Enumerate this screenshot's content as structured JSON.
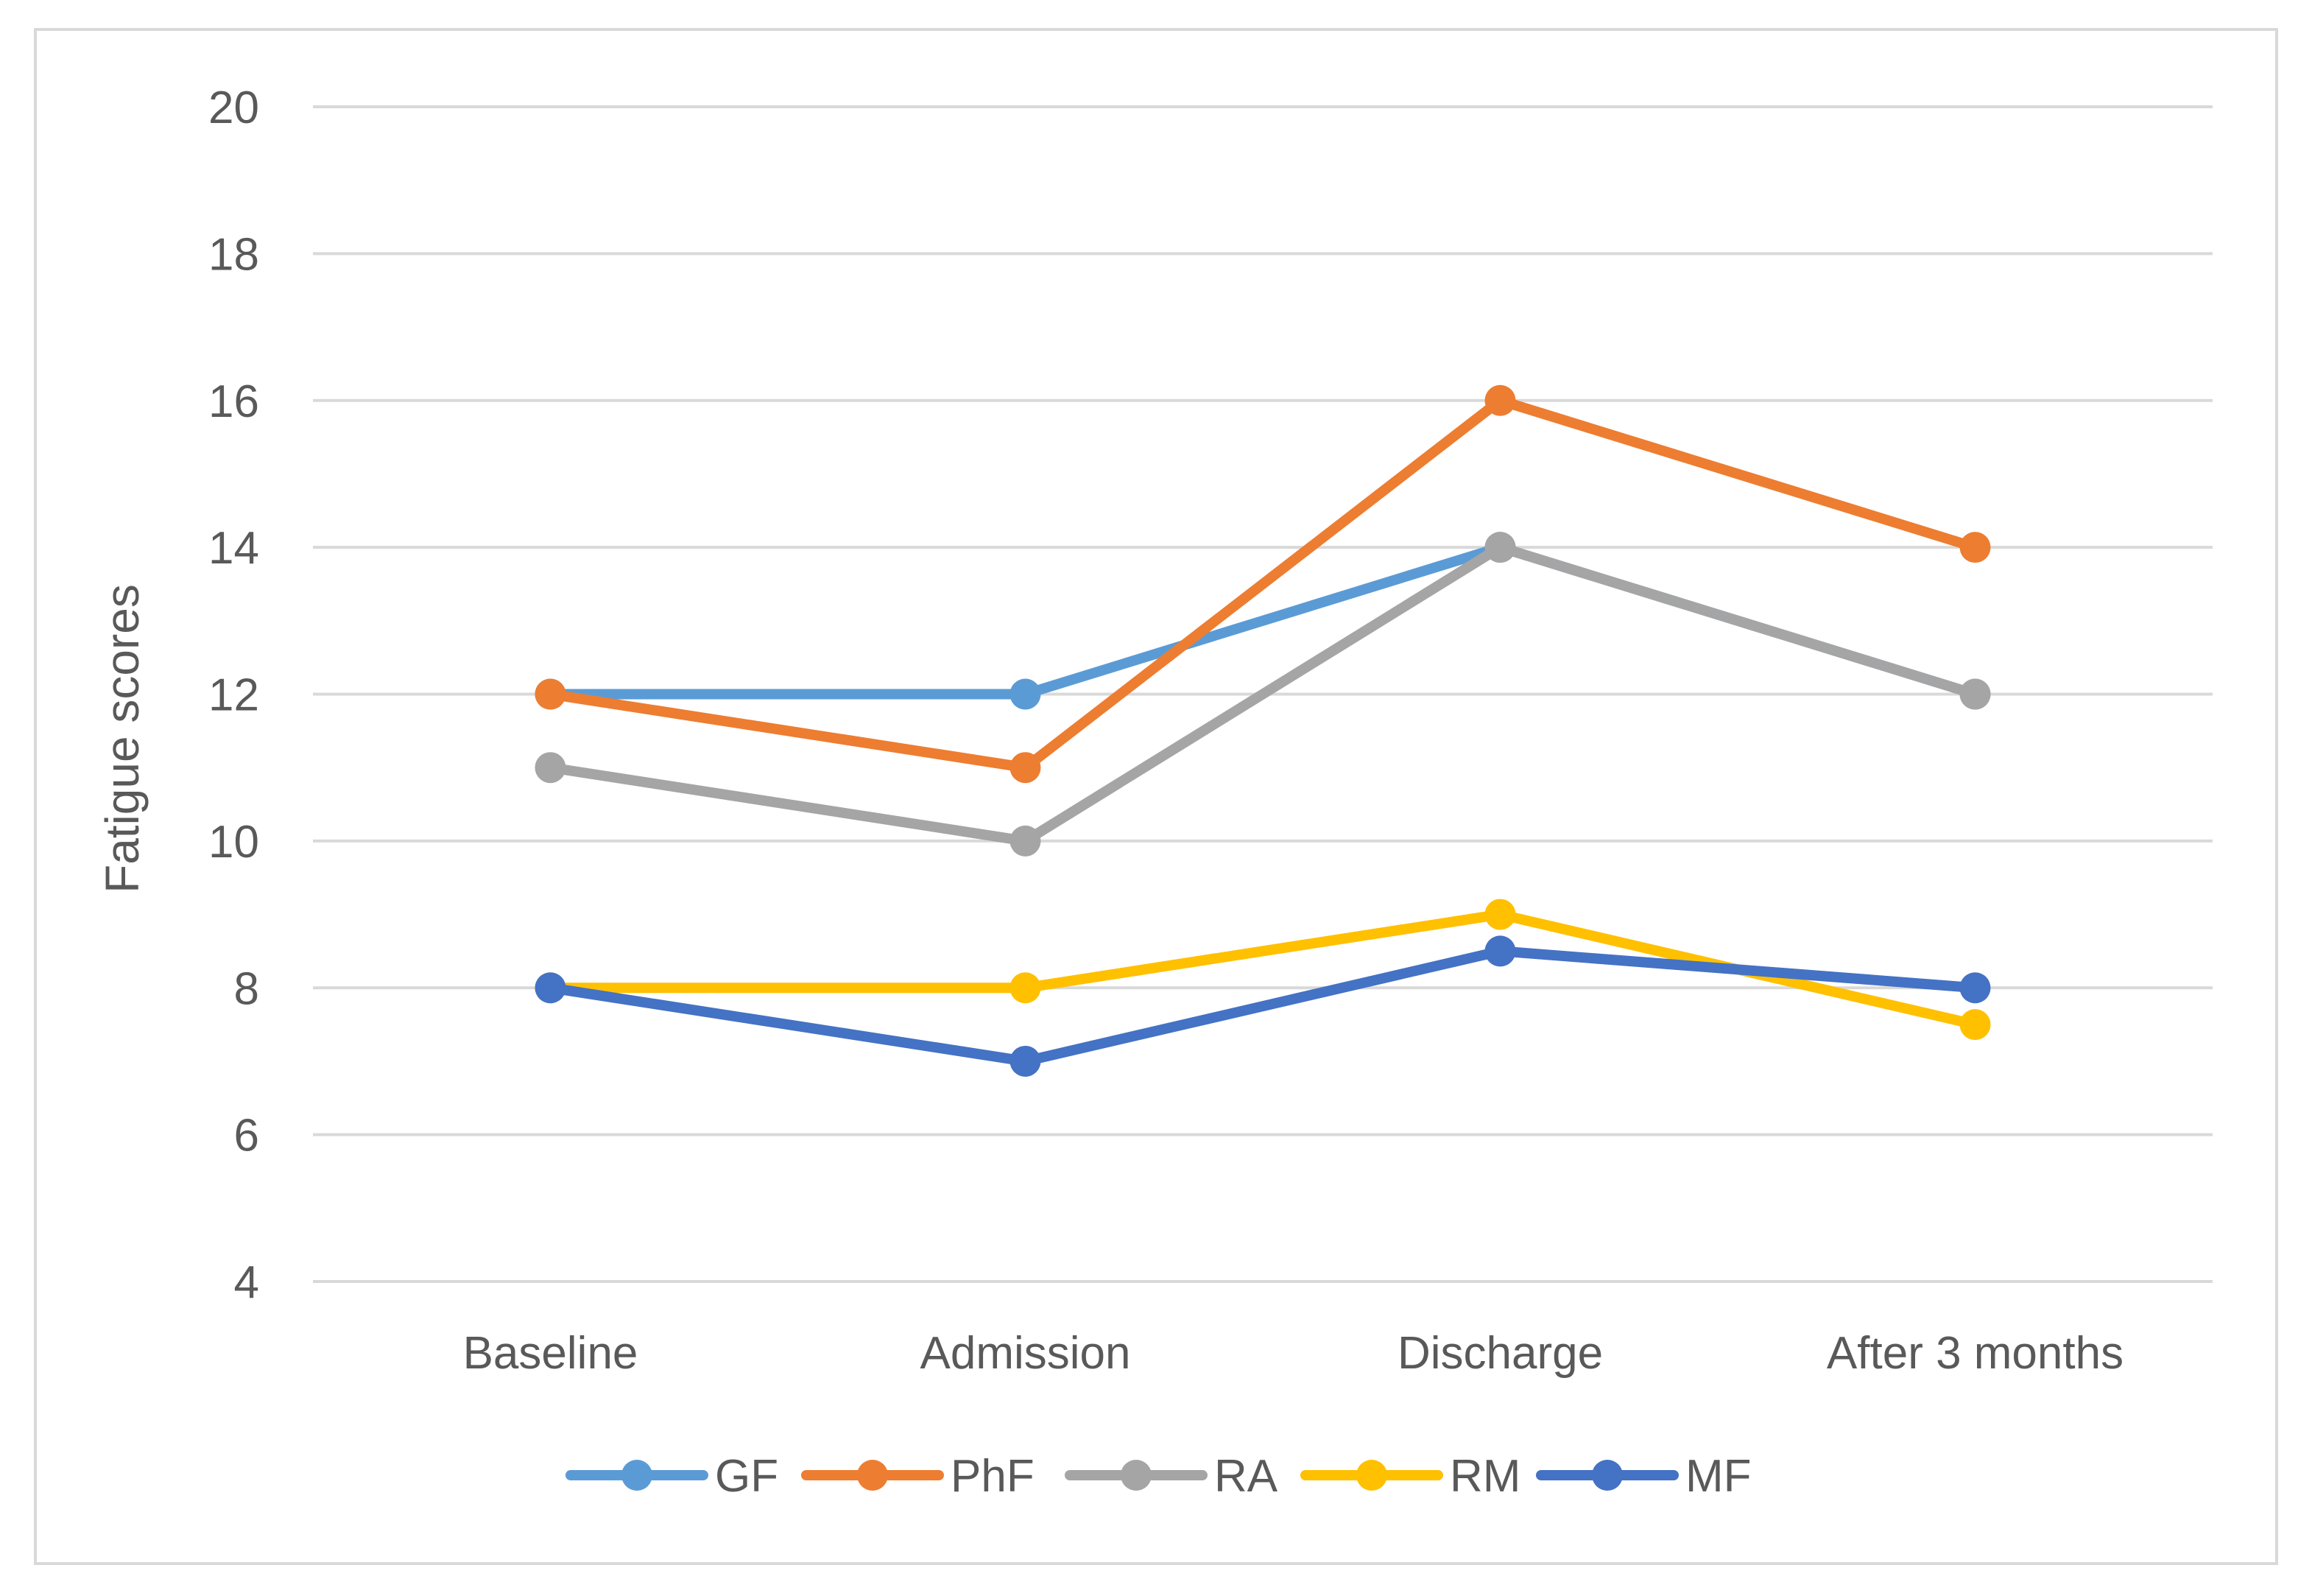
{
  "chart_data": {
    "type": "line",
    "title": "",
    "xlabel": "",
    "ylabel": "Fatigue scores",
    "categories": [
      "Baseline",
      "Admission",
      "Discharge",
      "After 3 months"
    ],
    "ylim": [
      4,
      20
    ],
    "yticks": [
      4,
      6,
      8,
      10,
      12,
      14,
      16,
      18,
      20
    ],
    "grid": true,
    "legend_position": "bottom",
    "series": [
      {
        "name": "GF",
        "color": "#5B9BD5",
        "values": [
          12,
          12,
          14,
          12
        ]
      },
      {
        "name": "PhF",
        "color": "#ED7D31",
        "values": [
          12,
          11,
          16,
          14
        ]
      },
      {
        "name": "RA",
        "color": "#A5A5A5",
        "values": [
          11,
          10,
          14,
          12
        ]
      },
      {
        "name": "RM",
        "color": "#FFC000",
        "values": [
          8,
          8,
          9,
          7.5
        ]
      },
      {
        "name": "MF",
        "color": "#4472C4",
        "values": [
          8,
          7,
          8.5,
          8
        ]
      }
    ]
  }
}
